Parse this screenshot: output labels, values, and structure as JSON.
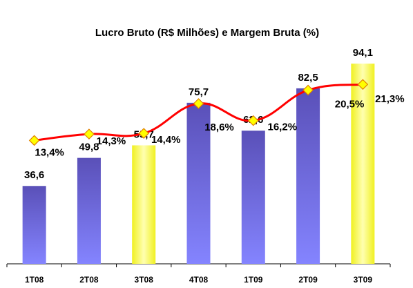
{
  "chart_data": {
    "type": "bar_line",
    "title": "Lucro Bruto (R$ Milhões) e Margem Bruta (%)",
    "categories": [
      "1T08",
      "2T08",
      "3T08",
      "4T08",
      "1T09",
      "2T09",
      "3T09"
    ],
    "ylim": [
      0,
      100
    ],
    "y2lim": [
      -4,
      26
    ],
    "series": [
      {
        "type": "bar",
        "values": [
          36.6,
          49.8,
          55.7,
          75.7,
          62.6,
          82.5,
          94.1
        ],
        "value_labels": [
          "36,6",
          "49,8",
          "55,7",
          "75,7",
          "62,6",
          "82,5",
          "94,1"
        ],
        "colors": [
          "#6a62d8",
          "#6a62d8",
          "#ffff33",
          "#6a62d8",
          "#6a62d8",
          "#6a62d8",
          "#ffff33"
        ]
      },
      {
        "type": "line",
        "axis": "y2",
        "color": "#ff0000",
        "marker_color": "#ffff00",
        "values": [
          13.4,
          14.3,
          14.4,
          18.6,
          16.2,
          20.5,
          21.3
        ],
        "value_labels": [
          "13,4%",
          "14,3%",
          "14,4%",
          "18,6%",
          "16,2%",
          "20,5%",
          "21,3%"
        ]
      }
    ]
  }
}
